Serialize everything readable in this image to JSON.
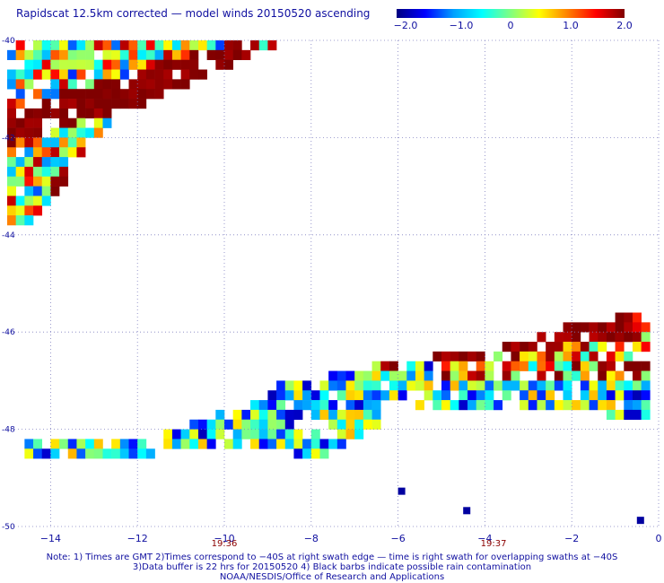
{
  "title": "Rapidscat 12.5km corrected — model winds 20150520 ascending",
  "colorbar": {
    "min": -2.0,
    "max": 2.0,
    "tick_labels": [
      "−2.0",
      "−1.0",
      "0",
      "1.0",
      "2.0"
    ],
    "colors": [
      "#000080",
      "#0000ff",
      "#00a0ff",
      "#00ffff",
      "#80ff80",
      "#ffff00",
      "#ff8000",
      "#ff0000",
      "#800000"
    ]
  },
  "time_labels": [
    "19:36",
    "19:37"
  ],
  "note_lines": [
    "Note: 1) Times are GMT 2)Times correspond to −40S at right swath edge — time is right swath for overlapping swaths at −40S",
    "3)Data buffer is 22 hrs for 20150520 4) Black barbs indicate possible rain contamination",
    "NOAA/NESDIS/Office of Research and Applications"
  ],
  "chart_data": {
    "type": "heatmap",
    "title": "Rapidscat 12.5km corrected — model winds 20150520 ascending",
    "xlabel": "",
    "ylabel": "",
    "xlim": [
      -15,
      0
    ],
    "ylim": [
      -50,
      -40
    ],
    "grid": true,
    "x_ticks": [
      -14,
      -12,
      -10,
      -8,
      -6,
      -4,
      -2,
      0
    ],
    "x_tick_labels": [
      "−14",
      "−12",
      "−10",
      "−8",
      "−6",
      "−4",
      "−2",
      "0"
    ],
    "y_ticks": [
      -40,
      -42,
      -44,
      -46,
      -48,
      -50
    ],
    "y_tick_labels": [
      "-40",
      "-42",
      "-44",
      "-46",
      "-48",
      "-50"
    ],
    "value_range": [
      -2.0,
      2.0
    ],
    "cell_size_deg": 0.2,
    "swaths": [
      {
        "region": "upper-left band",
        "polygon": [
          [
            -15,
            -40
          ],
          [
            -8.6,
            -40
          ],
          [
            -12.4,
            -41.5
          ],
          [
            -14.5,
            -43.8
          ],
          [
            -15,
            -43.8
          ]
        ],
        "high_diagonal": [
          [
            -15,
            -41.8
          ],
          [
            -9.5,
            -40.3
          ]
        ],
        "high_diagonal2": [
          [
            -13.8,
            -43.0
          ],
          [
            -9.8,
            -40.6
          ]
        ]
      },
      {
        "region": "lower-right band",
        "polygon": [
          [
            -14.6,
            -48.3
          ],
          [
            -11.5,
            -48.1
          ],
          [
            -9.8,
            -47.6
          ],
          [
            -8.5,
            -47.0
          ],
          [
            -6.0,
            -46.6
          ],
          [
            -3.5,
            -46.3
          ],
          [
            -1.8,
            -45.8
          ],
          [
            -0.1,
            -45.6
          ],
          [
            -0.1,
            -47.8
          ],
          [
            -2.5,
            -47.6
          ],
          [
            -4.5,
            -47.6
          ],
          [
            -6.2,
            -47.6
          ],
          [
            -6.6,
            -48.0
          ],
          [
            -7.7,
            -48.6
          ],
          [
            -9.5,
            -48.3
          ],
          [
            -12.5,
            -48.6
          ],
          [
            -14.6,
            -48.6
          ]
        ],
        "high_band": [
          [
            -6.2,
            -46.5
          ],
          [
            -0.8,
            -45.9
          ]
        ],
        "isolated_low_x": [
          -6.0,
          -4.5,
          -0.5
        ],
        "isolated_low_y": [
          -49.2,
          -49.6,
          -49.8
        ]
      }
    ],
    "time_label_x": [
      -10.0,
      -3.8
    ]
  }
}
